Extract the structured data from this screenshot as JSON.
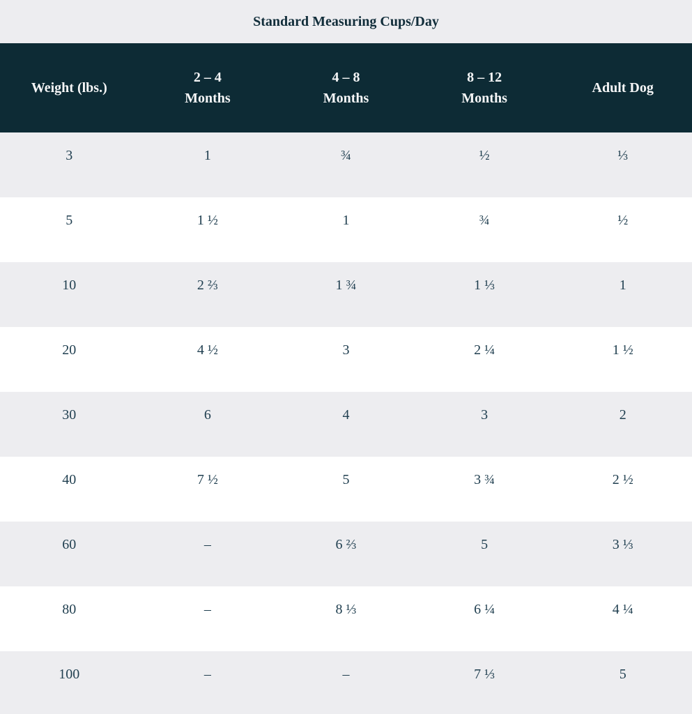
{
  "title": "Standard Measuring Cups/Day",
  "colors": {
    "header_bg": "#0d2b35",
    "header_text": "#f5f6f7",
    "title_band_bg": "#ededf0",
    "alt_row_bg": "#ededf0",
    "row_bg": "#ffffff",
    "body_text": "#1f3e4f",
    "title_text": "#112d3a"
  },
  "chart_data": {
    "type": "table",
    "title": "Standard Measuring Cups/Day",
    "columns": [
      {
        "label": "Weight (lbs.)",
        "lines": [
          "Weight (lbs.)"
        ]
      },
      {
        "label": "2 – 4 Months",
        "lines": [
          "2 – 4",
          "Months"
        ]
      },
      {
        "label": "4 – 8 Months",
        "lines": [
          "4 – 8",
          "Months"
        ]
      },
      {
        "label": "8 – 12 Months",
        "lines": [
          "8 – 12",
          "Months"
        ]
      },
      {
        "label": "Adult Dog",
        "lines": [
          "Adult Dog"
        ]
      }
    ],
    "rows": [
      [
        "3",
        "1",
        "¾",
        "½",
        "⅓"
      ],
      [
        "5",
        "1 ½",
        "1",
        "¾",
        "½"
      ],
      [
        "10",
        "2 ⅔",
        "1 ¾",
        "1 ⅓",
        "1"
      ],
      [
        "20",
        "4 ½",
        "3",
        "2 ¼",
        "1 ½"
      ],
      [
        "30",
        "6",
        "4",
        "3",
        "2"
      ],
      [
        "40",
        "7 ½",
        "5",
        "3 ¾",
        "2 ½"
      ],
      [
        "60",
        "–",
        "6 ⅔",
        "5",
        "3 ⅓"
      ],
      [
        "80",
        "–",
        "8 ⅓",
        "6 ¼",
        "4 ¼"
      ],
      [
        "100",
        "–",
        "–",
        "7 ⅓",
        "5"
      ]
    ],
    "layout": {
      "row_striping": "odd rows gray, even rows white",
      "header_position": "top",
      "alignment": "center"
    }
  }
}
